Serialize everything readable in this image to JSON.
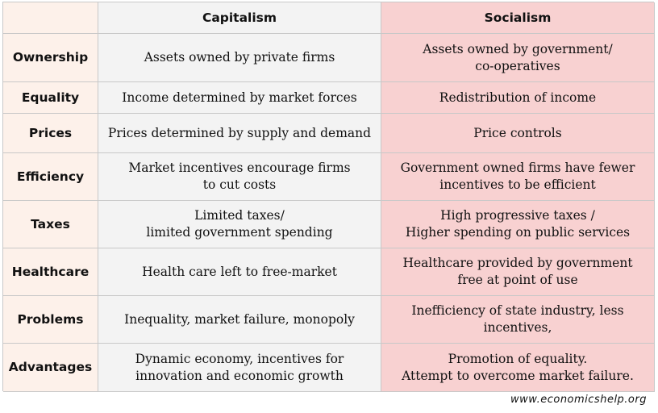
{
  "table": {
    "headers": {
      "corner": "",
      "capitalism": "Capitalism",
      "socialism": "Socialism"
    },
    "rows": [
      {
        "label": "Ownership",
        "capitalism": "Assets owned by private firms",
        "socialism": "Assets owned by government/\nco-operatives"
      },
      {
        "label": "Equality",
        "capitalism": "Income determined by market forces",
        "socialism": "Redistribution of income"
      },
      {
        "label": "Prices",
        "capitalism": "Prices determined by supply and demand",
        "socialism": "Price controls"
      },
      {
        "label": "Efficiency",
        "capitalism": "Market incentives encourage firms\nto cut costs",
        "socialism": "Government owned firms have fewer\nincentives to be efficient"
      },
      {
        "label": "Taxes",
        "capitalism": "Limited taxes/\nlimited government spending",
        "socialism": "High progressive taxes /\nHigher spending on public services"
      },
      {
        "label": "Healthcare",
        "capitalism": "Health care left to free-market",
        "socialism": "Healthcare provided by government\nfree at point of use"
      },
      {
        "label": "Problems",
        "capitalism": "Inequality, market failure, monopoly",
        "socialism": "Inefficiency of state industry, less\nincentives,"
      },
      {
        "label": "Advantages",
        "capitalism": "Dynamic economy, incentives for\ninnovation and economic growth",
        "socialism": "Promotion of equality.\nAttempt to overcome market failure."
      }
    ]
  },
  "footer": {
    "source": "www.economicshelp.org"
  },
  "colors": {
    "row_header_bg": "#fdf1ea",
    "capitalism_bg": "#f3f3f3",
    "socialism_bg": "#f8d1d1",
    "grid_line": "#c8c8c8"
  }
}
